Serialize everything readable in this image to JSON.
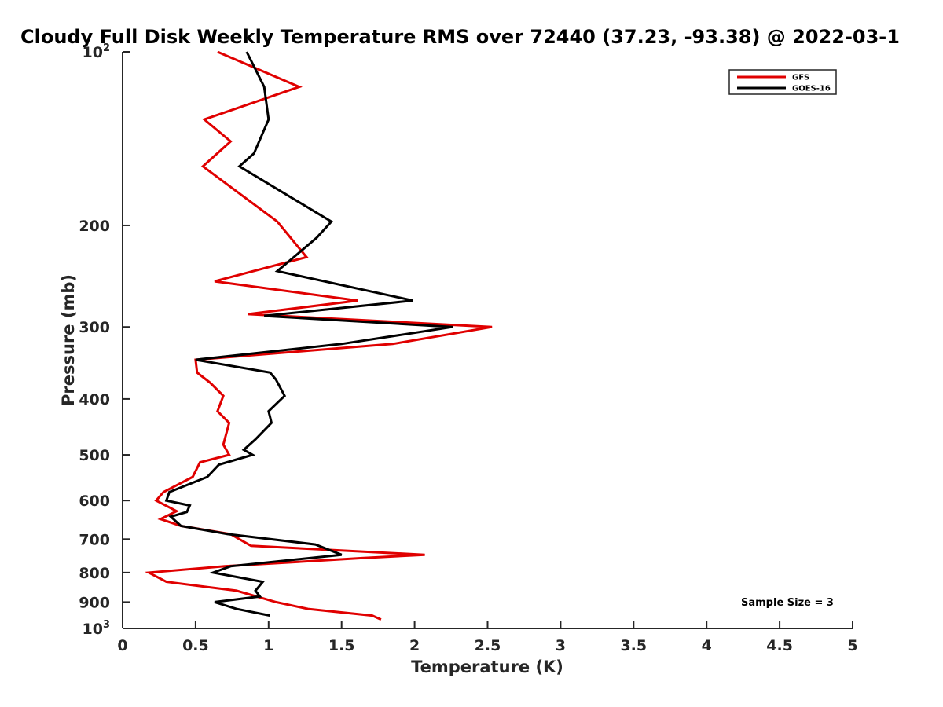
{
  "chart_data": {
    "type": "line",
    "title": "Cloudy Full Disk Weekly Temperature RMS over 72440 (37.23, -93.38) @ 2022-03-1",
    "xlabel": "Temperature (K)",
    "ylabel": "Pressure (mb)",
    "xlim": [
      0,
      5
    ],
    "ylim": [
      100,
      1000
    ],
    "y_scale": "log",
    "y_reversed": true,
    "x_ticks": [
      "0",
      "0.5",
      "1",
      "1.5",
      "2",
      "2.5",
      "3",
      "3.5",
      "4",
      "4.5",
      "5"
    ],
    "y_ticks": [
      {
        "value": 100,
        "base": "10",
        "exp": "2"
      },
      {
        "value": 200,
        "label": "200"
      },
      {
        "value": 300,
        "label": "300"
      },
      {
        "value": 400,
        "label": "400"
      },
      {
        "value": 500,
        "label": "500"
      },
      {
        "value": 600,
        "label": "600"
      },
      {
        "value": 700,
        "label": "700"
      },
      {
        "value": 800,
        "label": "800"
      },
      {
        "value": 900,
        "label": "900"
      },
      {
        "value": 1000,
        "base": "10",
        "exp": "3"
      }
    ],
    "grid": false,
    "legend_position": "top-right",
    "annotation": "Sample Size = 3",
    "series": [
      {
        "name": "GFS",
        "color": "#e00000",
        "points": [
          [
            0.65,
            100
          ],
          [
            1.21,
            115
          ],
          [
            0.56,
            131
          ],
          [
            0.74,
            143
          ],
          [
            0.55,
            158
          ],
          [
            1.06,
            197
          ],
          [
            1.26,
            227
          ],
          [
            0.63,
            250
          ],
          [
            1.61,
            270
          ],
          [
            0.86,
            285
          ],
          [
            2.53,
            300
          ],
          [
            1.85,
            321
          ],
          [
            0.5,
            342
          ],
          [
            0.51,
            360
          ],
          [
            0.6,
            375
          ],
          [
            0.69,
            395
          ],
          [
            0.65,
            420
          ],
          [
            0.73,
            440
          ],
          [
            0.69,
            480
          ],
          [
            0.73,
            500
          ],
          [
            0.53,
            515
          ],
          [
            0.48,
            546
          ],
          [
            0.28,
            580
          ],
          [
            0.23,
            600
          ],
          [
            0.37,
            626
          ],
          [
            0.26,
            646
          ],
          [
            0.4,
            664
          ],
          [
            0.74,
            686
          ],
          [
            0.85,
            712
          ],
          [
            0.88,
            719
          ],
          [
            2.07,
            745
          ],
          [
            1.64,
            755
          ],
          [
            0.7,
            780
          ],
          [
            0.18,
            800
          ],
          [
            0.3,
            830
          ],
          [
            0.78,
            860
          ],
          [
            1.05,
            900
          ],
          [
            1.27,
            925
          ],
          [
            1.71,
            950
          ],
          [
            1.77,
            965
          ]
        ]
      },
      {
        "name": "GOES-16",
        "color": "#000000",
        "points": [
          [
            0.85,
            100
          ],
          [
            0.97,
            115
          ],
          [
            1.0,
            131
          ],
          [
            0.9,
            150
          ],
          [
            0.8,
            158
          ],
          [
            1.43,
            197
          ],
          [
            1.33,
            210
          ],
          [
            1.06,
            240
          ],
          [
            1.99,
            270
          ],
          [
            0.97,
            287
          ],
          [
            2.26,
            300
          ],
          [
            1.5,
            321
          ],
          [
            0.5,
            342
          ],
          [
            1.01,
            360
          ],
          [
            1.05,
            370
          ],
          [
            1.11,
            395
          ],
          [
            1.0,
            420
          ],
          [
            1.02,
            440
          ],
          [
            0.91,
            470
          ],
          [
            0.83,
            490
          ],
          [
            0.89,
            500
          ],
          [
            0.66,
            520
          ],
          [
            0.58,
            546
          ],
          [
            0.32,
            580
          ],
          [
            0.3,
            600
          ],
          [
            0.46,
            612
          ],
          [
            0.44,
            628
          ],
          [
            0.33,
            640
          ],
          [
            0.4,
            664
          ],
          [
            0.72,
            686
          ],
          [
            1.32,
            715
          ],
          [
            1.5,
            745
          ],
          [
            0.74,
            780
          ],
          [
            0.62,
            800
          ],
          [
            0.96,
            830
          ],
          [
            0.91,
            860
          ],
          [
            0.94,
            880
          ],
          [
            0.63,
            900
          ],
          [
            0.78,
            925
          ],
          [
            1.01,
            950
          ]
        ]
      }
    ]
  }
}
